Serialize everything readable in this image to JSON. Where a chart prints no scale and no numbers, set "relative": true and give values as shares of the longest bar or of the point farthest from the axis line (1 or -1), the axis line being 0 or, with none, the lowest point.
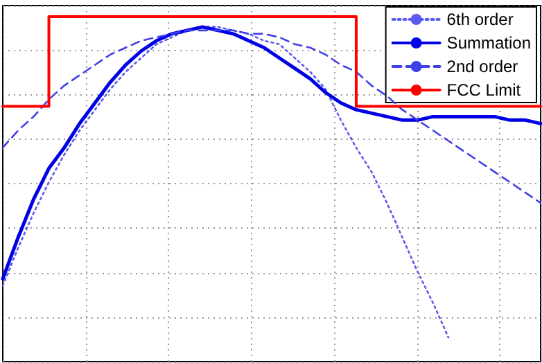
{
  "chart_data": {
    "type": "line",
    "relative": true,
    "grid": true,
    "legend": "top right",
    "marker": "none",
    "tick_labels": false,
    "categories": [
      null,
      null,
      null,
      null,
      null,
      null,
      null,
      null,
      null,
      null,
      null,
      null,
      null,
      null,
      null,
      null,
      null,
      null,
      null,
      null,
      null,
      null,
      null,
      null,
      null,
      null,
      null,
      null,
      null,
      null,
      null,
      null,
      null,
      null,
      null,
      null
    ],
    "series": [
      {
        "name": "6th order",
        "color": "#5a5af0",
        "line_style": "dotted",
        "values": [
          0.22,
          0.33,
          0.43,
          0.52,
          0.6,
          0.67,
          0.73,
          0.79,
          0.84,
          0.88,
          0.92,
          0.94,
          0.96,
          0.97,
          0.97,
          0.96,
          0.95,
          0.93,
          0.92,
          0.88,
          0.84,
          0.79,
          0.7,
          0.62,
          0.55,
          0.46,
          0.36,
          0.26,
          0.17,
          0.07,
          null,
          null,
          null,
          null,
          null,
          null
        ]
      },
      {
        "name": "Summation",
        "color": "#0000e6",
        "line_style": "solid",
        "values": [
          0.24,
          0.36,
          0.47,
          0.56,
          0.62,
          0.69,
          0.75,
          0.81,
          0.86,
          0.9,
          0.93,
          0.95,
          0.96,
          0.97,
          0.96,
          0.95,
          0.93,
          0.91,
          0.88,
          0.85,
          0.82,
          0.78,
          0.75,
          0.73,
          0.72,
          0.71,
          0.7,
          0.7,
          0.71,
          0.71,
          0.71,
          0.71,
          0.71,
          0.7,
          0.7,
          0.69
        ]
      },
      {
        "name": "2nd order",
        "color": "#4040e8",
        "line_style": "dashed",
        "values": [
          0.62,
          0.67,
          0.71,
          0.76,
          0.8,
          0.83,
          0.86,
          0.89,
          0.91,
          0.93,
          0.94,
          0.95,
          0.96,
          0.96,
          0.96,
          0.96,
          0.95,
          0.95,
          0.94,
          0.92,
          0.91,
          0.89,
          0.86,
          0.84,
          0.8,
          0.77,
          0.73,
          0.7,
          0.67,
          0.64,
          0.61,
          0.58,
          0.55,
          0.52,
          0.49,
          0.46
        ]
      },
      {
        "name": "FCC Limit",
        "type": "step",
        "color": "#ff0000",
        "line_style": "solid",
        "values": [
          0.74,
          0.74,
          0.74,
          1,
          1,
          1,
          1,
          1,
          1,
          1,
          1,
          1,
          1,
          1,
          1,
          1,
          1,
          1,
          1,
          1,
          1,
          1,
          1,
          0.74,
          0.74,
          0.74,
          0.74,
          0.74,
          0.74,
          0.74,
          0.74,
          0.74,
          0.74,
          0.74,
          0.74,
          0.74
        ]
      }
    ]
  }
}
